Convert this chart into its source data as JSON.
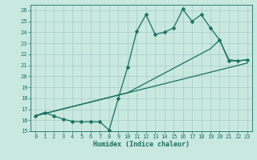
{
  "xlabel": "Humidex (Indice chaleur)",
  "bg_color": "#c8e8e0",
  "line_color": "#1a7060",
  "grid_color": "#a8ccc8",
  "xlim": [
    -0.5,
    23.5
  ],
  "ylim": [
    15,
    26.5
  ],
  "yticks": [
    15,
    16,
    17,
    18,
    19,
    20,
    21,
    22,
    23,
    24,
    25,
    26
  ],
  "xticks": [
    0,
    1,
    2,
    3,
    4,
    5,
    6,
    7,
    8,
    9,
    10,
    11,
    12,
    13,
    14,
    15,
    16,
    17,
    18,
    19,
    20,
    21,
    22,
    23
  ],
  "line1_x": [
    0,
    1,
    2,
    3,
    4,
    5,
    6,
    7,
    8,
    9,
    10,
    11,
    12,
    13,
    14,
    15,
    16,
    17,
    18,
    19,
    20,
    21,
    22,
    23
  ],
  "line1_y": [
    16.4,
    16.7,
    16.4,
    16.1,
    15.9,
    15.85,
    15.85,
    15.85,
    15.1,
    18.0,
    20.8,
    24.1,
    25.6,
    23.8,
    24.0,
    24.4,
    26.1,
    25.0,
    25.6,
    24.4,
    23.3,
    21.4,
    21.4,
    21.5
  ],
  "line2_x": [
    0,
    10,
    19,
    20,
    21,
    22,
    23
  ],
  "line2_y": [
    16.4,
    18.5,
    22.5,
    23.3,
    21.5,
    21.4,
    21.5
  ],
  "line3_x": [
    0,
    23
  ],
  "line3_y": [
    16.4,
    21.2
  ],
  "marker": "D",
  "marker_size": 2.5,
  "linewidth": 0.9
}
